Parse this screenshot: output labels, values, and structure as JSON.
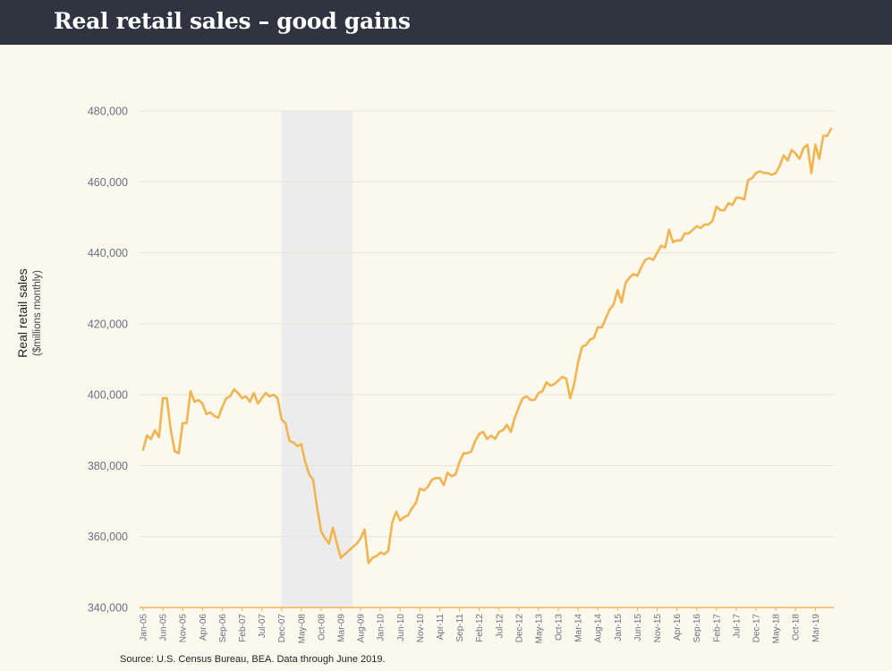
{
  "header": {
    "title": "Real retail sales – good gains"
  },
  "y_axis": {
    "label": "Real retail sales",
    "sublabel": "($millions monthly)"
  },
  "source": "Source: U.S. Census Bureau, BEA. Data through June 2019.",
  "colors": {
    "line": "#f2b450",
    "recession": "#ececec",
    "grid": "#e8e4d8",
    "header": "#2f3440",
    "background": "#fbf8ee"
  },
  "chart_data": {
    "type": "line",
    "ylim": [
      340000,
      480000
    ],
    "yticks": [
      340000,
      360000,
      380000,
      400000,
      420000,
      440000,
      460000,
      480000
    ],
    "ytick_labels": [
      "340,000",
      "360,000",
      "380,000",
      "400,000",
      "420,000",
      "440,000",
      "460,000",
      "480,000"
    ],
    "xtick_labels": [
      "Jan-05",
      "Jun-05",
      "Nov-05",
      "Apr-06",
      "Sep-06",
      "Feb-07",
      "Jul-07",
      "Dec-07",
      "May-08",
      "Oct-08",
      "Mar-09",
      "Aug-09",
      "Jan-10",
      "Jun-10",
      "Nov-10",
      "Apr-11",
      "Sep-11",
      "Feb-12",
      "Jul-12",
      "Dec-12",
      "May-13",
      "Oct-13",
      "Mar-14",
      "Aug-14",
      "Jan-15",
      "Jun-15",
      "Nov-15",
      "Apr-16",
      "Sep-16",
      "Feb-17",
      "Jul-17",
      "Dec-17",
      "May-18",
      "Oct-18",
      "Mar-19"
    ],
    "shaded_region": [
      "Dec-07",
      "Jun-09"
    ],
    "series": [
      {
        "start": "Jan-05",
        "values": [
          384500,
          388500,
          387500,
          390000,
          388000,
          399000,
          399000,
          390000,
          384000,
          383500,
          392000,
          392000,
          401000,
          398000,
          398500,
          397500,
          394500,
          395000,
          394000,
          393500,
          396500,
          399000,
          399500,
          401500,
          400500,
          399000,
          399500,
          398000,
          400500,
          397500,
          399000,
          400500,
          399500,
          400000,
          399000,
          393000,
          392000,
          387000,
          386500,
          385500,
          386000,
          381000,
          377500,
          376000,
          368000,
          361500,
          359500,
          358000,
          362500,
          358000,
          354000,
          355000,
          356000,
          357000,
          358000,
          359500,
          362000,
          352500,
          354000,
          354500,
          355500,
          355000,
          356000,
          364000,
          367000,
          364500,
          365500,
          366000,
          368000,
          369500,
          373500,
          373000,
          374000,
          376000,
          376500,
          376500,
          374500,
          378000,
          377000,
          377500,
          381000,
          383500,
          383500,
          384000,
          387000,
          389000,
          389500,
          387500,
          388500,
          387500,
          389500,
          390000,
          391500,
          389500,
          393500,
          396500,
          399000,
          399500,
          398500,
          398500,
          400500,
          401000,
          403500,
          402500,
          403000,
          404000,
          405000,
          404500,
          399000,
          403000,
          409000,
          413500,
          414000,
          415500,
          416000,
          419000,
          419000,
          421500,
          424000,
          425500,
          429500,
          426000,
          431500,
          433000,
          434000,
          433500,
          436000,
          438000,
          438500,
          438000,
          440000,
          442000,
          441500,
          446500,
          443000,
          443500,
          443500,
          445500,
          445500,
          446500,
          447500,
          447000,
          448000,
          448000,
          449000,
          453000,
          452000,
          452000,
          454000,
          453500,
          455500,
          455500,
          455000,
          460500,
          461000,
          462500,
          463000,
          462500,
          462500,
          462000,
          462500,
          464500,
          467500,
          466000,
          469000,
          468000,
          466500,
          469500,
          470500,
          462500,
          470500,
          466500,
          473000,
          473000,
          475000
        ]
      }
    ]
  }
}
